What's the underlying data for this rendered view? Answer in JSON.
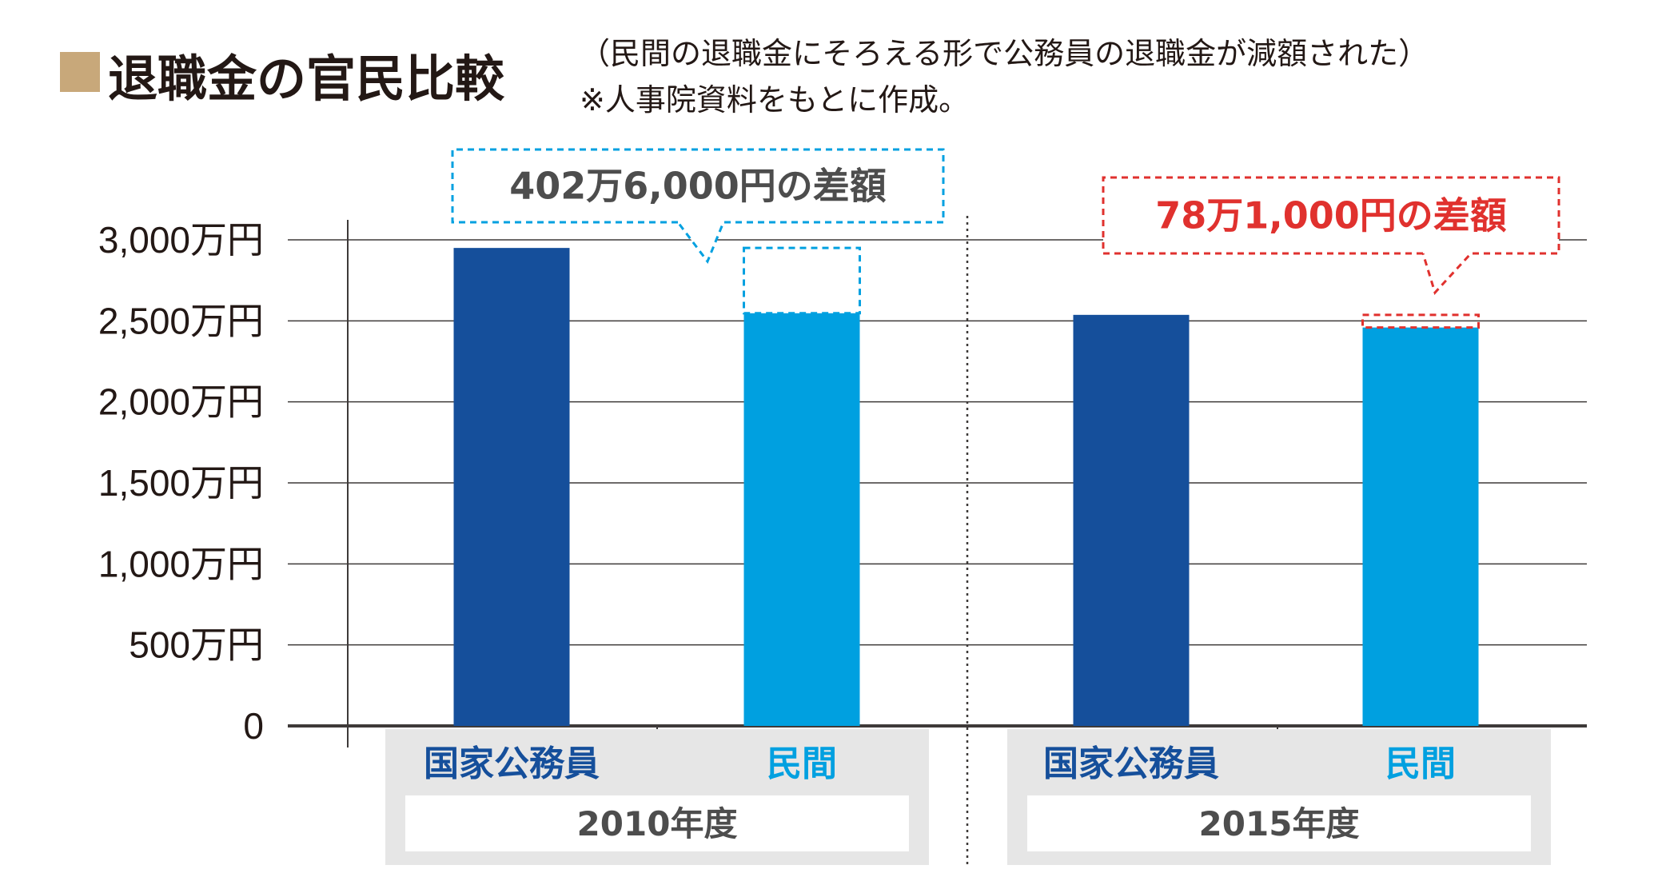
{
  "header": {
    "title": "退職金の官民比較",
    "note_line1": "（民間の退職金にそろえる形で公務員の退職金が減額された）",
    "note_line2": "※人事院資料をもとに作成。"
  },
  "colors": {
    "title_square": "#c8a87a",
    "public": "#154f9b",
    "private": "#00a0e0",
    "annotation_2010": "#00a0e0",
    "annotation_2015": "#e0312e",
    "label_bg": "#e6e6e6",
    "grid": "#3e3a39"
  },
  "chart_data": {
    "type": "bar",
    "title": "退職金の官民比較",
    "ylabel": "",
    "ylim": [
      0,
      3000
    ],
    "y_unit": "万円",
    "y_ticks": [
      0,
      500,
      1000,
      1500,
      2000,
      2500,
      3000
    ],
    "y_tick_labels": [
      "0",
      "500万円",
      "1,000万円",
      "1,500万円",
      "2,000万円",
      "2,500万円",
      "3,000万円"
    ],
    "groups": [
      "2010年度",
      "2015年度"
    ],
    "categories": [
      "国家公務員",
      "民間"
    ],
    "series": [
      {
        "group": "2010年度",
        "category": "国家公務員",
        "value": 2950
      },
      {
        "group": "2010年度",
        "category": "民間",
        "value": 2547
      },
      {
        "group": "2015年度",
        "category": "国家公務員",
        "value": 2537
      },
      {
        "group": "2015年度",
        "category": "民間",
        "value": 2459
      }
    ],
    "annotations": [
      {
        "group": "2010年度",
        "text": "402万6,000円の差額",
        "diff_from": 2547,
        "diff_to": 2950
      },
      {
        "group": "2015年度",
        "text": "78万1,000円の差額",
        "diff_from": 2459,
        "diff_to": 2537
      }
    ],
    "grid": true
  }
}
